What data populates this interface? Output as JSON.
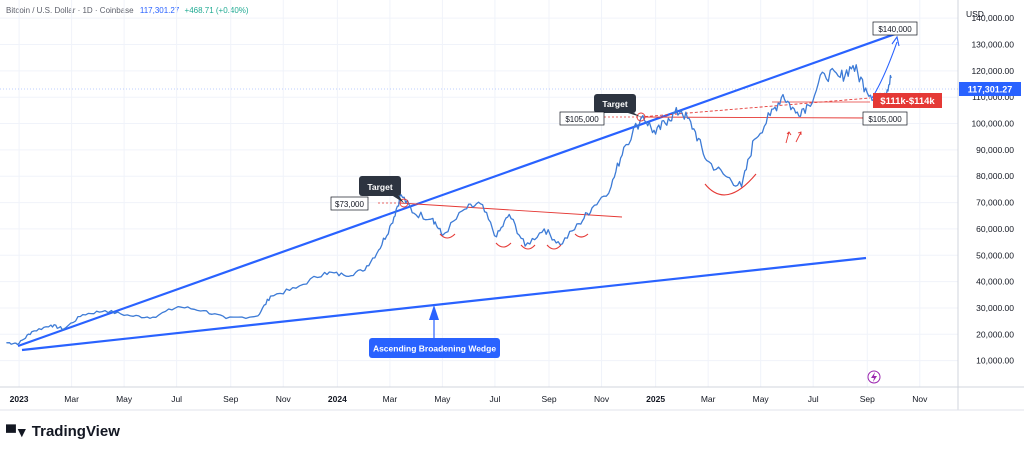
{
  "header": {
    "symbol_line": "Bitcoin / U.S. Dollar · 1D · Coinbase",
    "price": "117,301.27",
    "change": "+468.71 (+0.40%)"
  },
  "currency": "USD",
  "current_price_label": "117,301.27",
  "brand": "TradingView",
  "colors": {
    "price_line": "#3d7bd6",
    "wedge": "#2962ff",
    "resistance": "#e53935",
    "range_badge": "#e53935",
    "callout": "#2d3440",
    "wedge_label_bg": "#2962ff"
  },
  "chart_data": {
    "type": "line",
    "series": [
      {
        "values": [
          [
            2022.96,
            16800
          ],
          [
            2023.0,
            16600
          ],
          [
            2023.04,
            21000
          ],
          [
            2023.1,
            23500
          ],
          [
            2023.14,
            22000
          ],
          [
            2023.2,
            27500
          ],
          [
            2023.27,
            29000
          ],
          [
            2023.35,
            27000
          ],
          [
            2023.42,
            26500
          ],
          [
            2023.5,
            30500
          ],
          [
            2023.58,
            29000
          ],
          [
            2023.65,
            26000
          ],
          [
            2023.75,
            27000
          ],
          [
            2023.79,
            34500
          ],
          [
            2023.87,
            37500
          ],
          [
            2023.96,
            43500
          ],
          [
            2024.02,
            42500
          ],
          [
            2024.08,
            44000
          ],
          [
            2024.13,
            52000
          ],
          [
            2024.17,
            62000
          ],
          [
            2024.2,
            73000
          ],
          [
            2024.24,
            66000
          ],
          [
            2024.3,
            64000
          ],
          [
            2024.33,
            57500
          ],
          [
            2024.4,
            67500
          ],
          [
            2024.45,
            69500
          ],
          [
            2024.5,
            57000
          ],
          [
            2024.54,
            65500
          ],
          [
            2024.59,
            53500
          ],
          [
            2024.65,
            60000
          ],
          [
            2024.7,
            54000
          ],
          [
            2024.76,
            62000
          ],
          [
            2024.8,
            68000
          ],
          [
            2024.86,
            76000
          ],
          [
            2024.9,
            91000
          ],
          [
            2024.96,
            103000
          ],
          [
            2025.0,
            96000
          ],
          [
            2025.04,
            102000
          ],
          [
            2025.08,
            105000
          ],
          [
            2025.12,
            98000
          ],
          [
            2025.16,
            86000
          ],
          [
            2025.22,
            80000
          ],
          [
            2025.27,
            76000
          ],
          [
            2025.31,
            94000
          ],
          [
            2025.36,
            103000
          ],
          [
            2025.4,
            111000
          ],
          [
            2025.44,
            104000
          ],
          [
            2025.48,
            107000
          ],
          [
            2025.53,
            119000
          ],
          [
            2025.58,
            117500
          ],
          [
            2025.62,
            122000
          ],
          [
            2025.66,
            113500
          ],
          [
            2025.7,
            108500
          ],
          [
            2025.72,
            111500
          ],
          [
            2025.74,
            117300
          ]
        ]
      }
    ],
    "y_axis": {
      "ticks": [
        "10,000.00",
        "20,000.00",
        "30,000.00",
        "40,000.00",
        "50,000.00",
        "60,000.00",
        "70,000.00",
        "80,000.00",
        "90,000.00",
        "100,000.00",
        "110,000.00",
        "120,000.00",
        "130,000.00",
        "140,000.00"
      ],
      "range": [
        0,
        145000
      ],
      "label": "USD"
    },
    "x_axis": {
      "ticks": [
        {
          "label": "2023",
          "t": 2023.0,
          "bold": true
        },
        {
          "label": "Mar",
          "t": 2023.165
        },
        {
          "label": "May",
          "t": 2023.33
        },
        {
          "label": "Jul",
          "t": 2023.495
        },
        {
          "label": "Sep",
          "t": 2023.665
        },
        {
          "label": "Nov",
          "t": 2023.83
        },
        {
          "label": "2024",
          "t": 2024.0,
          "bold": true
        },
        {
          "label": "Mar",
          "t": 2024.165
        },
        {
          "label": "May",
          "t": 2024.33
        },
        {
          "label": "Jul",
          "t": 2024.495
        },
        {
          "label": "Sep",
          "t": 2024.665
        },
        {
          "label": "Nov",
          "t": 2024.83
        },
        {
          "label": "2025",
          "t": 2025.0,
          "bold": true
        },
        {
          "label": "Mar",
          "t": 2025.165
        },
        {
          "label": "May",
          "t": 2025.33
        },
        {
          "label": "Jul",
          "t": 2025.495
        },
        {
          "label": "Sep",
          "t": 2025.665
        },
        {
          "label": "Nov",
          "t": 2025.83
        }
      ],
      "range": [
        2022.94,
        2025.95
      ]
    },
    "annotations": {
      "wedge_label": "Ascending Broadening Wedge",
      "target_label": "Target",
      "price_tags": [
        "$73,000",
        "$105,000",
        "$105,000",
        "$140,000"
      ],
      "range_badge": "$111k-$114k"
    }
  }
}
